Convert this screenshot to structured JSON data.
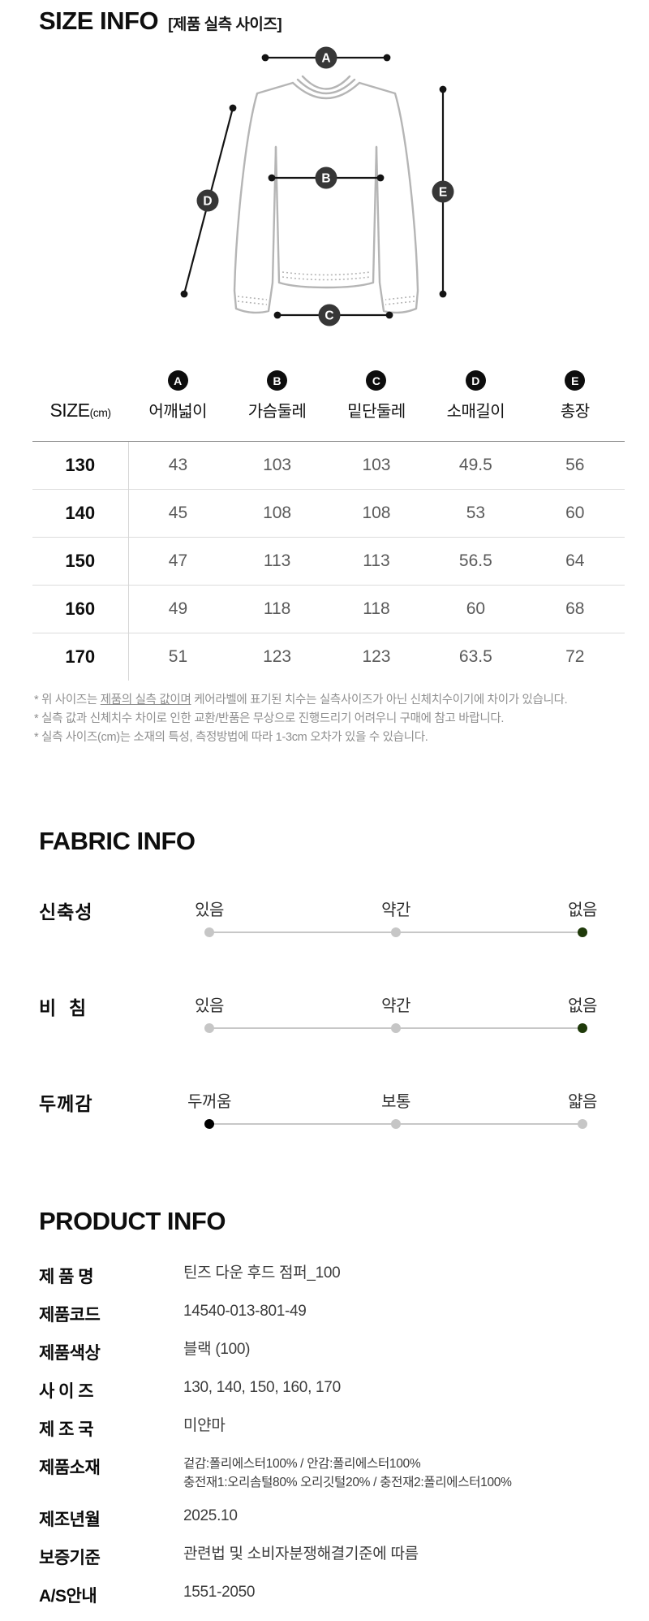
{
  "size_info": {
    "title": "SIZE INFO",
    "subtitle": "[제품 실측 사이즈]",
    "diagram_labels": [
      "A",
      "B",
      "C",
      "D",
      "E"
    ],
    "table": {
      "size_header": "SIZE",
      "size_header_unit": "(cm)",
      "columns": [
        {
          "badge": "A",
          "label": "어깨넓이"
        },
        {
          "badge": "B",
          "label": "가슴둘레"
        },
        {
          "badge": "C",
          "label": "밑단둘레"
        },
        {
          "badge": "D",
          "label": "소매길이"
        },
        {
          "badge": "E",
          "label": "총장"
        }
      ],
      "rows": [
        {
          "size": "130",
          "values": [
            "43",
            "103",
            "103",
            "49.5",
            "56"
          ]
        },
        {
          "size": "140",
          "values": [
            "45",
            "108",
            "108",
            "53",
            "60"
          ]
        },
        {
          "size": "150",
          "values": [
            "47",
            "113",
            "113",
            "56.5",
            "64"
          ]
        },
        {
          "size": "160",
          "values": [
            "49",
            "118",
            "118",
            "60",
            "68"
          ]
        },
        {
          "size": "170",
          "values": [
            "51",
            "123",
            "123",
            "63.5",
            "72"
          ]
        }
      ]
    },
    "footnotes": [
      {
        "prefix": "* 위 사이즈는 ",
        "underlined": "제품의 실측 값이며",
        "suffix": " 케어라벨에 표기된 치수는 실측사이즈가 아닌 신체치수이기에 차이가 있습니다."
      },
      {
        "prefix": "* 실측 값과 신체치수 차이로 인한 교환/반품은 무상으로 진행드리기 어려우니 구매에 참고 바랍니다.",
        "underlined": "",
        "suffix": ""
      },
      {
        "prefix": "* 실측 사이즈(cm)는 소재의 특성, 측정방법에 따라 1-3cm 오차가 있을 수 있습니다.",
        "underlined": "",
        "suffix": ""
      }
    ]
  },
  "fabric_info": {
    "title": "FABRIC INFO",
    "track_color": "#c7c7c7",
    "inactive_dot_color": "#c6c6c6",
    "rows": [
      {
        "label": "신축성",
        "options": [
          "있음",
          "약간",
          "없음"
        ],
        "selected_index": 2,
        "active_color": "#1f3a0a"
      },
      {
        "label": "비  침",
        "options": [
          "있음",
          "약간",
          "없음"
        ],
        "selected_index": 2,
        "active_color": "#1f3a0a"
      },
      {
        "label": "두께감",
        "options": [
          "두꺼움",
          "보통",
          "얇음"
        ],
        "selected_index": 0,
        "active_color": "#000000"
      }
    ]
  },
  "product_info": {
    "title": "PRODUCT INFO",
    "rows": [
      {
        "label": "제 품 명",
        "value": "틴즈 다운 후드 점퍼_100"
      },
      {
        "label": "제품코드",
        "value": "14540-013-801-49"
      },
      {
        "label": "제품색상",
        "value": "블랙 (100)"
      },
      {
        "label": "사 이 즈",
        "value": "130, 140, 150, 160, 170"
      },
      {
        "label": "제 조 국",
        "value": "미얀마"
      },
      {
        "label": "제품소재",
        "value": "겉감:폴리에스터100% / 안감:폴리에스터100%\n충전재1:오리솜털80% 오리깃털20% / 충전재2:폴리에스터100%",
        "small": true
      },
      {
        "label": "제조년월",
        "value": "2025.10"
      },
      {
        "label": "보증기준",
        "value": "관련법 및 소비자분쟁해결기준에 따름"
      },
      {
        "label": "A/S안내",
        "value": "1551-2050"
      }
    ]
  }
}
